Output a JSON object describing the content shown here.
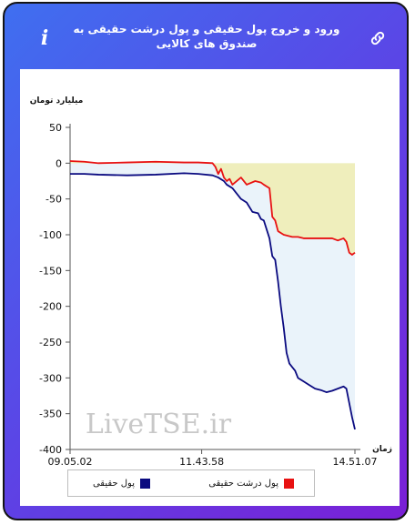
{
  "header": {
    "title": "ورود و خروج پول حقیقی و پول درشت حقیقی به صندوق های کالایی",
    "info_label": "i",
    "link_icon": "link-icon",
    "info_icon": "info-icon"
  },
  "colors": {
    "frame_gradient": [
      "#3f6ff0",
      "#7a1fd6"
    ],
    "real_money": "#0a0a80",
    "large_real_money": "#e81212",
    "area_real": "#eaf3fa",
    "area_large": "#efeebc"
  },
  "watermark": "LiveTSE.ir",
  "chart_data": {
    "type": "line",
    "ylabel": "میلیارد تومان",
    "xlabel": "زمان",
    "ylim": [
      -400,
      50
    ],
    "yticks": [
      50,
      0,
      -50,
      -100,
      -150,
      -200,
      -250,
      -300,
      -350,
      -400
    ],
    "xlim": [
      0,
      100
    ],
    "xtick_labels": [
      "09.05.02",
      "11.43.58",
      "14.51.07"
    ],
    "xtick_positions": [
      0,
      46.2,
      100
    ],
    "grid": false,
    "legend_position": "bottom",
    "series": [
      {
        "name": "پول حقیقی",
        "color": "#0a0a80",
        "x": [
          0,
          5,
          10,
          20,
          30,
          40,
          45,
          50,
          52,
          54,
          55,
          57,
          60,
          62,
          64,
          66,
          67,
          68,
          70,
          71,
          72,
          73,
          74,
          75,
          76,
          77,
          78,
          79,
          80,
          82,
          84,
          86,
          88,
          90,
          92,
          94,
          96,
          97,
          98,
          99,
          100
        ],
        "values": [
          -15,
          -15,
          -16,
          -17,
          -16,
          -14,
          -15,
          -17,
          -20,
          -25,
          -30,
          -35,
          -50,
          -55,
          -68,
          -70,
          -78,
          -80,
          -105,
          -130,
          -135,
          -165,
          -200,
          -230,
          -265,
          -280,
          -285,
          -290,
          -300,
          -305,
          -310,
          -315,
          -317,
          -320,
          -318,
          -315,
          -312,
          -315,
          -335,
          -355,
          -372
        ]
      },
      {
        "name": "پول درشت حقیقی",
        "color": "#e81212",
        "x": [
          0,
          5,
          10,
          20,
          30,
          40,
          45,
          50,
          51,
          52,
          53,
          54,
          55,
          56,
          57,
          60,
          62,
          65,
          67,
          68,
          70,
          71,
          72,
          73,
          75,
          78,
          80,
          82,
          85,
          88,
          90,
          92,
          94,
          96,
          97,
          98,
          99,
          100
        ],
        "values": [
          3,
          2,
          0,
          1,
          2,
          1,
          1,
          0,
          -5,
          -15,
          -8,
          -20,
          -25,
          -22,
          -30,
          -20,
          -30,
          -25,
          -27,
          -30,
          -35,
          -75,
          -80,
          -95,
          -100,
          -103,
          -103,
          -105,
          -105,
          -105,
          -105,
          -105,
          -108,
          -105,
          -110,
          -125,
          -128,
          -125
        ]
      }
    ]
  },
  "legend": {
    "real_label": "پول حقیقی",
    "large_label": "پول درشت حقیقی"
  }
}
